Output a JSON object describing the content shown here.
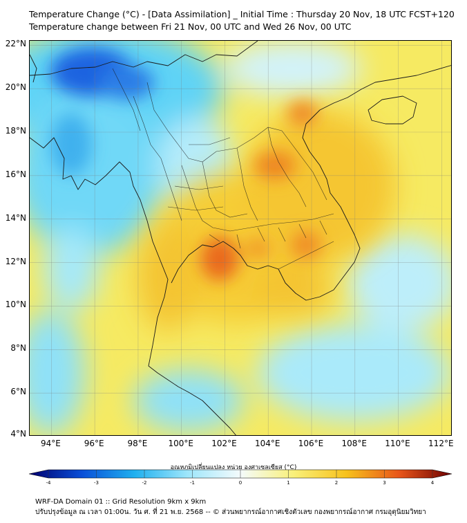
{
  "title_line1": "Temperature Change (°C) - [Data Assimilation] _ Initial Time : Thursday 20 Nov, 18 UTC FCST+120",
  "title_line2": "Temperature change between Fri 21 Nov, 00 UTC and Wed 26 Nov, 00 UTC",
  "map": {
    "lon_range": [
      93,
      112.5
    ],
    "lat_range": [
      4,
      22.2
    ],
    "lat_ticks": [
      "22°N",
      "20°N",
      "18°N",
      "16°N",
      "14°N",
      "12°N",
      "10°N",
      "8°N",
      "6°N",
      "4°N"
    ],
    "lat_values": [
      22,
      20,
      18,
      16,
      14,
      12,
      10,
      8,
      6,
      4
    ],
    "lon_ticks": [
      "94°E",
      "96°E",
      "98°E",
      "100°E",
      "102°E",
      "104°E",
      "106°E",
      "108°E",
      "110°E",
      "112°E"
    ],
    "lon_values": [
      94,
      96,
      98,
      100,
      102,
      104,
      106,
      108,
      110,
      112
    ],
    "colors": {
      "neg4": "#00006e",
      "neg3": "#0a4fd8",
      "neg2": "#1fb0ef",
      "neg1": "#9ee6fb",
      "zero": "#f4fbfc",
      "pos1": "#f9f07a",
      "pos2": "#f7c21c",
      "pos3": "#e8561a",
      "pos4": "#6d0000"
    }
  },
  "colorbar": {
    "label": "อุณหภูมิเปลี่ยนแปลง หน่วย องศาเซลเซียส (°C)",
    "ticks": [
      "-4",
      "-3",
      "-2",
      "-1",
      "0",
      "1",
      "2",
      "3",
      "4"
    ],
    "tick_values": [
      -4,
      -3,
      -2,
      -1,
      0,
      1,
      2,
      3,
      4
    ]
  },
  "footer_line1": "WRF-DA Domain 01 :: Grid Resolution 9km x 9km",
  "footer_line2": "ปรับปรุงข้อมูล ณ เวลา 01:00น. วัน ศ. ที่ 21 พ.ย. 2568 -- © ส่วนพยากรณ์อากาศเชิงตัวเลข กองพยากรณ์อากาศ กรมอุตุนิยมวิทยา"
}
